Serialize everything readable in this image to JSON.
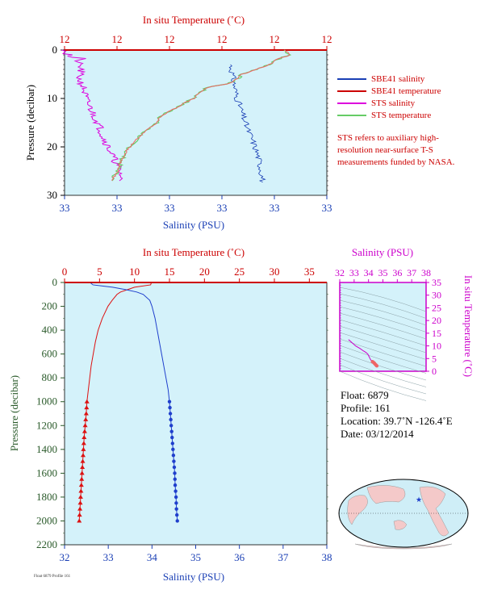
{
  "chart_data": [
    {
      "type": "line",
      "name": "near-surface",
      "top_axis_label": "In situ Temperature (˚C)",
      "top_ticks": [
        "12",
        "12",
        "12",
        "12",
        "12",
        "12"
      ],
      "xlabel": "Salinity (PSU)",
      "x_ticks": [
        "33",
        "33",
        "33",
        "33",
        "33",
        "33"
      ],
      "ylabel": "Pressure (decibar)",
      "y_ticks": [
        "0",
        "10",
        "20",
        "30"
      ],
      "ylim": [
        0,
        30
      ],
      "series": [
        {
          "name": "SBE41 salinity",
          "color": "#1a3fb5",
          "kind": "profile"
        },
        {
          "name": "SBE41 temperature",
          "color": "#cc0000",
          "kind": "profile"
        },
        {
          "name": "STS salinity",
          "color": "#dd00dd",
          "kind": "profile"
        },
        {
          "name": "STS temperature",
          "color": "#66cc66",
          "kind": "profile"
        }
      ],
      "note": "STS refers to auxiliary high-resolution near-surface T-S measurements funded by NASA."
    },
    {
      "type": "line",
      "name": "full-profile",
      "top_axis_label": "In situ Temperature (˚C)",
      "top_ticks": [
        "0",
        "5",
        "10",
        "15",
        "20",
        "25",
        "30",
        "35"
      ],
      "xlabel": "Salinity (PSU)",
      "x_ticks": [
        "32",
        "33",
        "34",
        "35",
        "36",
        "37",
        "38"
      ],
      "xlim": [
        32,
        38
      ],
      "ylabel": "Pressure (decibar)",
      "y_ticks": [
        "0",
        "200",
        "400",
        "600",
        "800",
        "1000",
        "1200",
        "1400",
        "1600",
        "1800",
        "2000",
        "2200"
      ],
      "ylim": [
        0,
        2200
      ],
      "temperature_profile": {
        "pressure": [
          5,
          20,
          40,
          60,
          80,
          100,
          150,
          200,
          300,
          400,
          500,
          600,
          700,
          800,
          900,
          1000,
          1050,
          1100,
          1200,
          1300,
          1400,
          1500,
          1600,
          1700,
          1800,
          1900,
          2000
        ],
        "temperature": [
          12.4,
          12.3,
          10.0,
          9.0,
          8.0,
          7.5,
          6.8,
          6.2,
          5.4,
          4.8,
          4.4,
          4.1,
          3.8,
          3.6,
          3.4,
          3.2,
          3.15,
          3.1,
          2.95,
          2.8,
          2.7,
          2.6,
          2.5,
          2.4,
          2.3,
          2.2,
          2.1
        ]
      },
      "salinity_profile": {
        "pressure": [
          5,
          20,
          40,
          60,
          80,
          100,
          150,
          200,
          300,
          400,
          500,
          600,
          700,
          800,
          900,
          1000,
          1050,
          1100,
          1200,
          1300,
          1400,
          1500,
          1600,
          1700,
          1800,
          1900,
          2000
        ],
        "salinity": [
          32.6,
          32.65,
          33.1,
          33.4,
          33.65,
          33.8,
          33.95,
          34.0,
          34.07,
          34.12,
          34.17,
          34.22,
          34.27,
          34.32,
          34.37,
          34.4,
          34.41,
          34.42,
          34.44,
          34.46,
          34.48,
          34.5,
          34.52,
          34.53,
          34.55,
          34.56,
          34.58
        ]
      },
      "sampled_from_pressure": 1000,
      "temperature_color": "#dd1111",
      "salinity_color": "#1f3fcc"
    },
    {
      "type": "scatter",
      "name": "ts-diagram",
      "top_axis_label": "Salinity (PSU)",
      "x_ticks": [
        "32",
        "33",
        "34",
        "35",
        "36",
        "37",
        "38"
      ],
      "xlim": [
        32,
        38
      ],
      "right_axis_label": "In situ Temperature (˚C)",
      "y_ticks": [
        "0",
        "5",
        "10",
        "15",
        "20",
        "25",
        "30",
        "35"
      ],
      "ylim": [
        0,
        35
      ],
      "salinity": [
        32.6,
        32.65,
        33.1,
        33.4,
        33.65,
        33.8,
        33.95,
        34.0,
        34.07,
        34.12,
        34.17,
        34.22,
        34.27,
        34.32,
        34.37,
        34.4,
        34.42,
        34.46,
        34.5,
        34.53,
        34.56,
        34.58
      ],
      "temperature": [
        12.4,
        12.3,
        10.0,
        9.0,
        8.0,
        7.5,
        6.8,
        6.2,
        5.4,
        4.8,
        4.4,
        4.1,
        3.8,
        3.6,
        3.4,
        3.2,
        3.1,
        2.8,
        2.6,
        2.4,
        2.2,
        2.1
      ],
      "axis_color": "#cc00cc"
    }
  ],
  "float_info": {
    "float": "Float:  6879",
    "profile": "Profile:  161",
    "location": "Location:  39.7˚N  -126.4˚E",
    "date": "Date:  03/12/2014"
  },
  "map": {
    "marker_color": "#1f3fcc",
    "land_color": "#f4c9c9",
    "ocean_color": "#cfeef7"
  },
  "footer": "Float 6879 Profile 161"
}
